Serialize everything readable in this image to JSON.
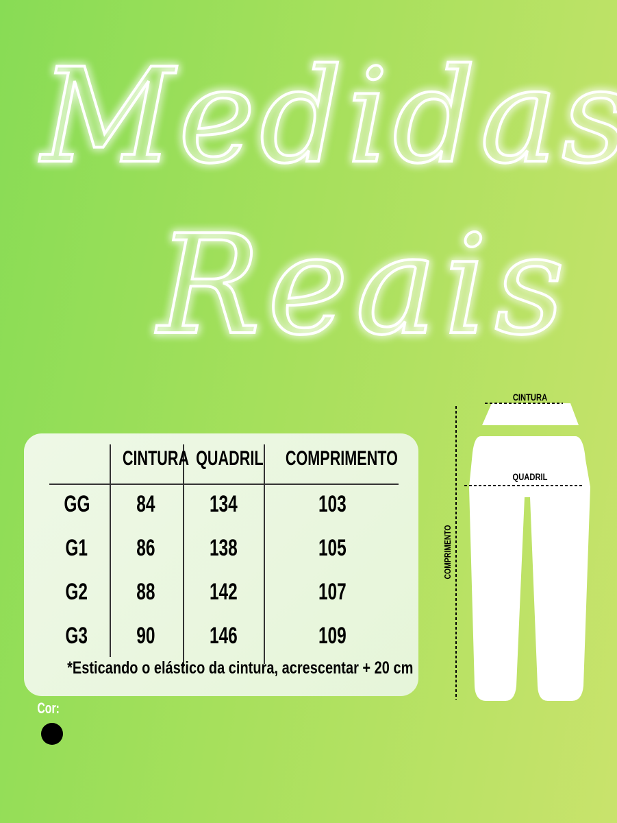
{
  "title": {
    "line1": "Medidas",
    "line2": "Reais"
  },
  "table": {
    "headers": [
      "CINTURA",
      "QUADRIL",
      "COMPRIMENTO"
    ],
    "rows": [
      {
        "size": "GG",
        "cintura": "84",
        "quadril": "134",
        "comprimento": "103"
      },
      {
        "size": "G1",
        "cintura": "86",
        "quadril": "138",
        "comprimento": "105"
      },
      {
        "size": "G2",
        "cintura": "88",
        "quadril": "142",
        "comprimento": "107"
      },
      {
        "size": "G3",
        "cintura": "90",
        "quadril": "146",
        "comprimento": "109"
      }
    ],
    "note": "*Esticando o elástico da cintura, acrescentar + 20 cm"
  },
  "color": {
    "label": "Cor:",
    "swatches": [
      "#000000"
    ]
  },
  "diagram": {
    "cintura": "CINTURA",
    "quadril": "QUADRIL",
    "comprimento": "COMPRIMENTO"
  }
}
